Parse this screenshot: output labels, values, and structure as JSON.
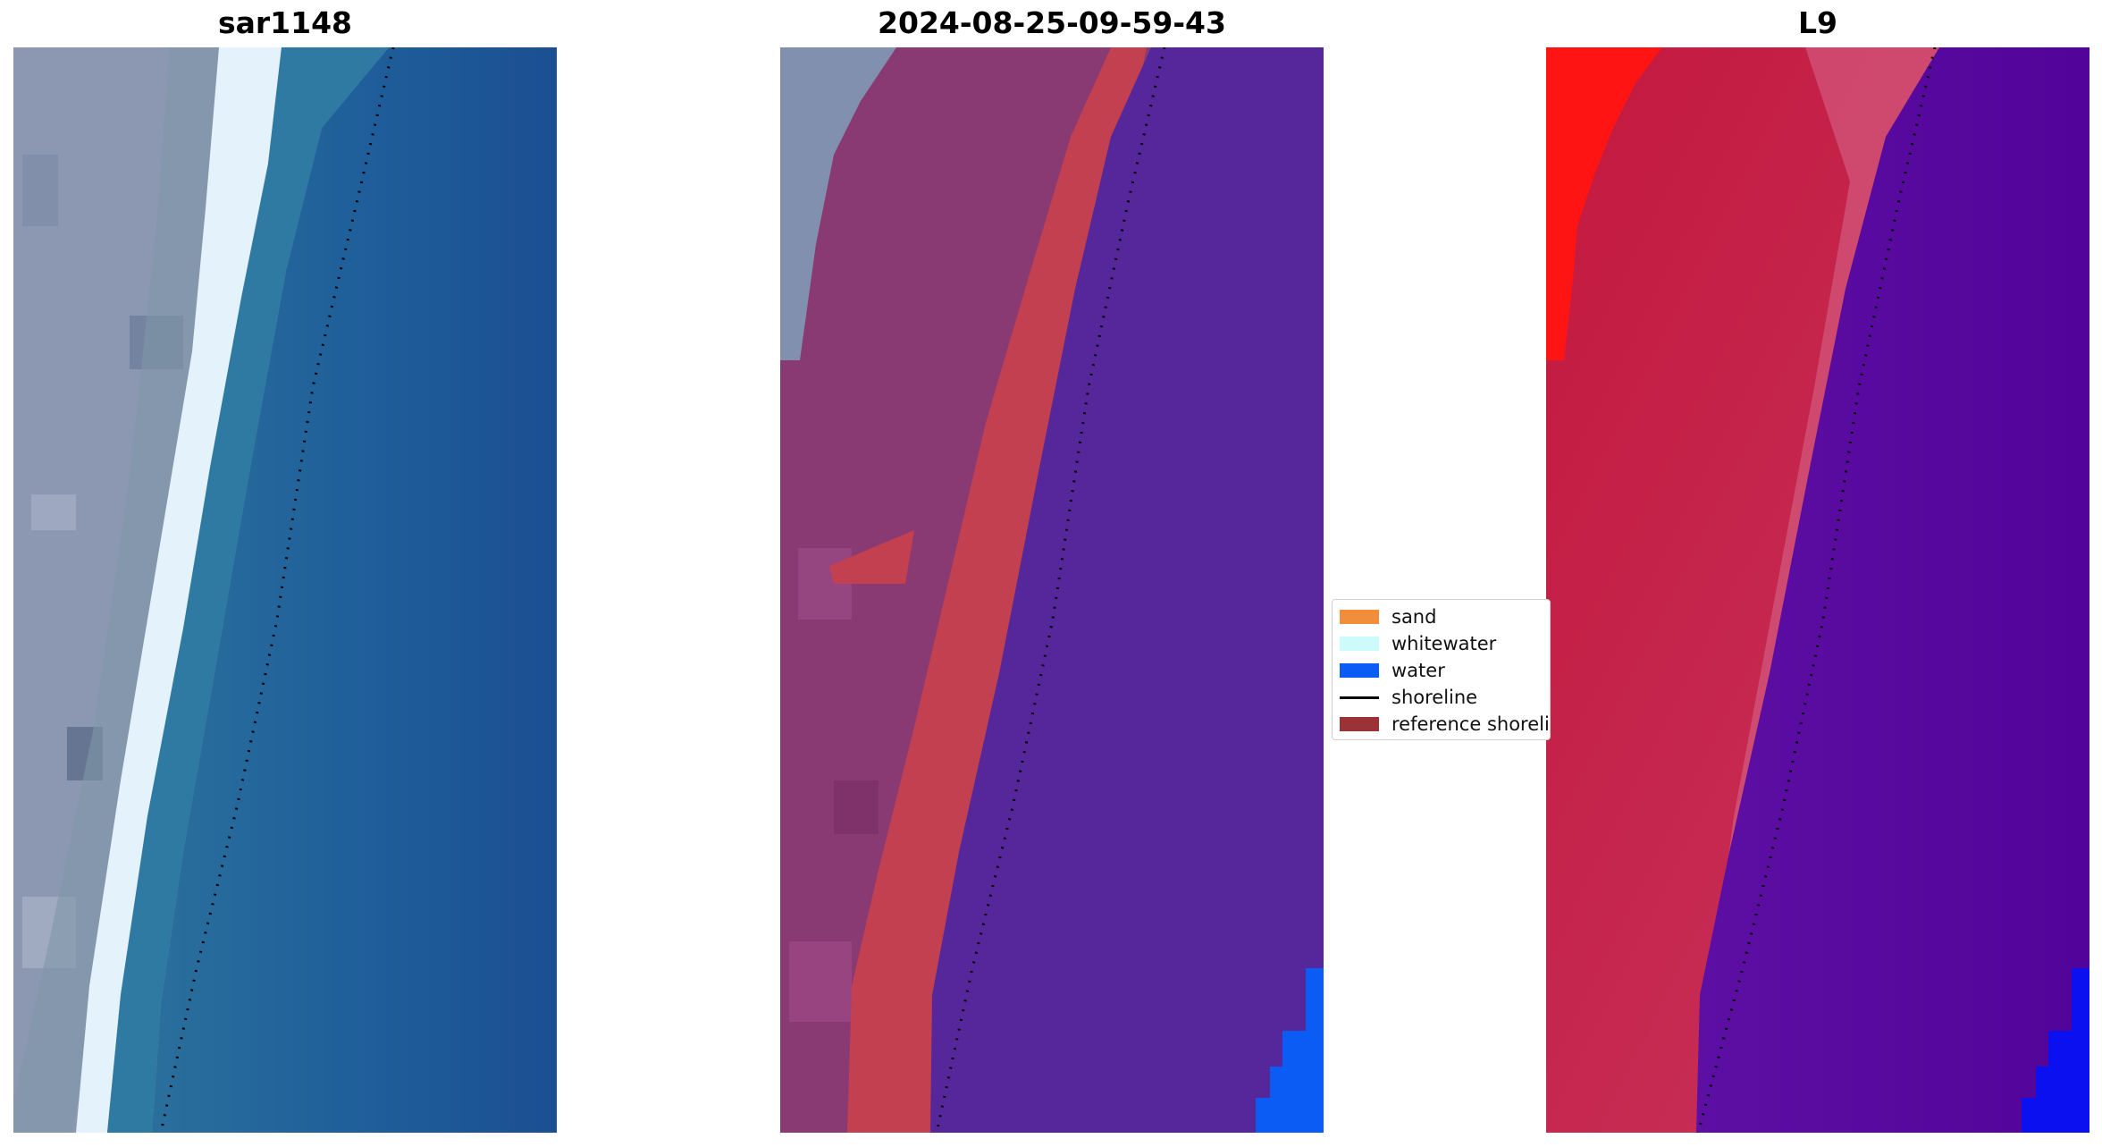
{
  "panels": [
    {
      "title": "sar1148",
      "kind": "rgb"
    },
    {
      "title": "2024-08-25-09-59-43",
      "kind": "classified"
    },
    {
      "title": "L9",
      "kind": "index"
    }
  ],
  "legend": {
    "items": [
      {
        "label": "sand",
        "color": "#f28d3c",
        "type": "patch"
      },
      {
        "label": "whitewater",
        "color": "#cdfbfb",
        "type": "patch"
      },
      {
        "label": "water",
        "color": "#0b5cf5",
        "type": "patch"
      },
      {
        "label": "shoreline",
        "color": "#000000",
        "type": "line"
      },
      {
        "label": "reference shoreline",
        "color": "#9b3235",
        "type": "patch"
      }
    ]
  },
  "colors": {
    "land_rgb": "#8e9cb8",
    "beach_rgb": "#e6f4fb",
    "sea_rgb": "#1e5d98",
    "land_classified": "#8a3a73",
    "buffer_red": "#c2404f",
    "sea_classified": "#55279a",
    "water_blue": "#0b5cf5",
    "land_index": "#c22a55",
    "bright_red": "#ff1414",
    "sea_index": "#560aa0",
    "index_blue": "#0a10f0"
  }
}
